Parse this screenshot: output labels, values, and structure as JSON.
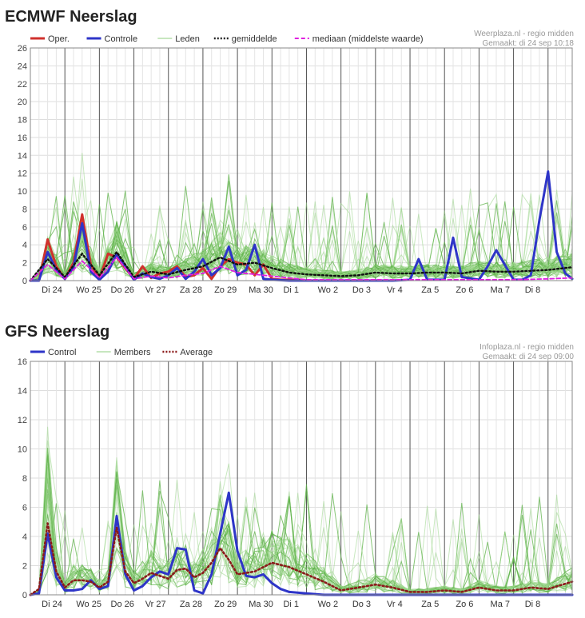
{
  "chart_data": [
    {
      "type": "line",
      "title": "ECMWF Neerslag",
      "credit_line1": "Weerplaza.nl - regio midden",
      "credit_line2": "Gemaakt: di 24 sep 10:18",
      "ylim": [
        0,
        26
      ],
      "yticks": [
        0,
        2,
        4,
        6,
        8,
        10,
        12,
        14,
        16,
        18,
        20,
        22,
        24,
        26
      ],
      "xlim": [
        0,
        15.7
      ],
      "day_labels": [
        "Di 24",
        "Wo 25",
        "Do 26",
        "Vr 27",
        "Za 28",
        "Zo 29",
        "Ma 30",
        "Di 1",
        "Wo 2",
        "Do 3",
        "Vr 4",
        "Za 5",
        "Zo 6",
        "Ma 7",
        "Di 8"
      ],
      "legend": [
        {
          "label": "Oper.",
          "style": "solid-thick",
          "color": "#d0312d"
        },
        {
          "label": "Controle",
          "style": "solid-thick",
          "color": "#2e35c8"
        },
        {
          "label": "Leden",
          "style": "solid-thin",
          "color": "#8fcf7f"
        },
        {
          "label": "gemiddelde",
          "style": "dotted",
          "color": "#222222"
        },
        {
          "label": "mediaan (middelste waarde)",
          "style": "dashed",
          "color": "#e020e0"
        }
      ],
      "series": [
        {
          "name": "Oper.",
          "color": "#d0312d",
          "width": 3,
          "x": [
            0,
            0.25,
            0.5,
            0.75,
            1,
            1.25,
            1.5,
            1.75,
            2,
            2.25,
            2.5,
            2.75,
            3,
            3.25,
            3.5,
            3.75,
            4,
            4.25,
            4.5,
            4.75,
            5,
            5.25,
            5.5,
            5.75,
            6,
            6.25,
            6.5,
            6.75,
            7,
            7.25,
            7.5,
            7.75,
            8,
            8.5,
            9,
            9.5,
            10
          ],
          "y": [
            0,
            0,
            4.6,
            1.6,
            0.2,
            2.0,
            7.4,
            1.8,
            0.2,
            3.0,
            2.6,
            1.4,
            0.2,
            1.6,
            0.3,
            0.8,
            1.0,
            1.6,
            0.4,
            0.6,
            1.4,
            0.2,
            1.6,
            2.4,
            2.0,
            1.8,
            0.6,
            1.8,
            0.2,
            0.1,
            0.1,
            0.1,
            0,
            0,
            0,
            0,
            0
          ]
        },
        {
          "name": "Controle",
          "color": "#2e35c8",
          "width": 3,
          "x": [
            0,
            0.25,
            0.5,
            0.75,
            1,
            1.25,
            1.5,
            1.75,
            2,
            2.25,
            2.5,
            2.75,
            3,
            3.25,
            3.5,
            3.75,
            4,
            4.25,
            4.5,
            4.75,
            5,
            5.25,
            5.5,
            5.75,
            6,
            6.25,
            6.5,
            6.75,
            7,
            7.5,
            8,
            8.5,
            9,
            9.5,
            10,
            10.5,
            11,
            11.25,
            11.5,
            12,
            12.25,
            12.5,
            13,
            13.25,
            13.5,
            14,
            14.25,
            14.5,
            14.75,
            15,
            15.25,
            15.5,
            15.7
          ],
          "y": [
            0,
            0,
            3.2,
            1.2,
            0.2,
            1.5,
            6.4,
            1.0,
            0.1,
            1.0,
            3.0,
            1.6,
            0.1,
            0.8,
            0.4,
            0.2,
            0.6,
            1.4,
            0.2,
            1.0,
            2.4,
            0.6,
            1.4,
            3.8,
            0.6,
            1.2,
            4.0,
            0.2,
            0.1,
            0,
            0,
            0,
            0,
            0,
            0,
            0,
            0.1,
            2.4,
            0.1,
            0.1,
            4.8,
            0.4,
            0.1,
            1.6,
            3.4,
            0.1,
            0.1,
            0.6,
            6.8,
            12.2,
            3.2,
            0.8,
            0.2
          ]
        },
        {
          "name": "gemiddelde",
          "color": "#111111",
          "dash": "2,3",
          "width": 2.4,
          "x": [
            0,
            0.5,
            1,
            1.5,
            2,
            2.5,
            3,
            3.5,
            4,
            4.5,
            5,
            5.5,
            6,
            6.5,
            7,
            7.5,
            8,
            8.5,
            9,
            9.5,
            10,
            10.5,
            11,
            11.5,
            12,
            12.5,
            13,
            13.5,
            14,
            14.5,
            15,
            15.7
          ],
          "y": [
            0,
            2.4,
            0.4,
            3.0,
            0.6,
            3.2,
            0.4,
            1.0,
            0.7,
            1.2,
            1.6,
            2.6,
            1.8,
            2.0,
            1.4,
            0.9,
            0.7,
            0.6,
            0.5,
            0.6,
            0.9,
            0.8,
            0.8,
            0.9,
            0.9,
            0.8,
            1.1,
            1.0,
            1.0,
            1.1,
            1.2,
            1.5
          ]
        },
        {
          "name": "mediaan (middelste waarde)",
          "color": "#e020e0",
          "dash": "5,3",
          "width": 1.8,
          "x": [
            0,
            0.5,
            1,
            1.5,
            2,
            2.5,
            3,
            3.5,
            4,
            4.5,
            5,
            5.5,
            6,
            7,
            8,
            9,
            10,
            11,
            12,
            13,
            14,
            15,
            15.7
          ],
          "y": [
            0,
            1.8,
            0.2,
            2.2,
            0.3,
            2.6,
            0.2,
            0.5,
            0.3,
            0.6,
            0.8,
            1.6,
            0.9,
            0.5,
            0.1,
            0.1,
            0.1,
            0.1,
            0.1,
            0.1,
            0.1,
            0.2,
            0.3
          ]
        }
      ],
      "members_note": "Leden"
    },
    {
      "type": "line",
      "title": "GFS Neerslag",
      "credit_line1": "Infoplaza.nl - regio midden",
      "credit_line2": "Gemaakt: di 24 sep 09:00",
      "ylim": [
        0,
        16
      ],
      "yticks": [
        0,
        2,
        4,
        6,
        8,
        10,
        12,
        14,
        16
      ],
      "xlim": [
        0,
        15.7
      ],
      "day_labels": [
        "Di 24",
        "Wo 25",
        "Do 26",
        "Vr 27",
        "Za 28",
        "Zo 29",
        "Ma 30",
        "Di 1",
        "Wo 2",
        "Do 3",
        "Vr 4",
        "Za 5",
        "Zo 6",
        "Ma 7",
        "Di 8"
      ],
      "legend": [
        {
          "label": "Control",
          "style": "solid-thick",
          "color": "#2e35c8"
        },
        {
          "label": "Members",
          "style": "solid-thin",
          "color": "#8fcf7f"
        },
        {
          "label": "Average",
          "style": "dotted",
          "color": "#8b1a1a"
        }
      ],
      "series": [
        {
          "name": "Control",
          "color": "#2e35c8",
          "width": 3,
          "x": [
            0,
            0.25,
            0.5,
            0.75,
            1,
            1.25,
            1.5,
            1.75,
            2,
            2.25,
            2.5,
            2.75,
            3,
            3.25,
            3.5,
            3.75,
            4,
            4.25,
            4.5,
            4.75,
            5,
            5.25,
            5.5,
            5.75,
            6,
            6.25,
            6.5,
            6.75,
            7,
            7.25,
            7.5,
            8,
            8.5,
            9,
            10,
            11,
            12,
            13,
            14,
            15,
            15.7
          ],
          "y": [
            0,
            0.1,
            4.2,
            1.2,
            0.3,
            0.3,
            0.4,
            1.0,
            0.4,
            0.6,
            5.4,
            1.4,
            0.3,
            0.6,
            1.2,
            1.6,
            1.4,
            3.2,
            3.1,
            0.3,
            0.1,
            1.4,
            4.2,
            7.0,
            3.0,
            1.3,
            1.2,
            1.4,
            0.8,
            0.4,
            0.2,
            0.1,
            0,
            0,
            0,
            0,
            0,
            0,
            0,
            0,
            0
          ]
        },
        {
          "name": "Average",
          "color": "#8b1a1a",
          "dash": "2,3",
          "width": 2.6,
          "x": [
            0,
            0.25,
            0.5,
            0.75,
            1,
            1.25,
            1.5,
            1.75,
            2,
            2.25,
            2.5,
            2.75,
            3,
            3.25,
            3.5,
            3.75,
            4,
            4.25,
            4.5,
            4.75,
            5,
            5.25,
            5.5,
            5.75,
            6,
            6.5,
            7,
            7.5,
            8,
            8.5,
            9,
            9.5,
            10,
            10.5,
            11,
            11.5,
            12,
            12.5,
            13,
            13.5,
            14,
            14.5,
            15,
            15.7
          ],
          "y": [
            0,
            0.4,
            4.9,
            1.6,
            0.5,
            1.0,
            1.0,
            0.9,
            0.5,
            0.9,
            4.6,
            1.6,
            0.8,
            1.1,
            1.5,
            1.3,
            1.1,
            1.7,
            1.8,
            1.2,
            1.5,
            2.2,
            3.2,
            2.4,
            1.4,
            1.6,
            2.2,
            1.9,
            1.4,
            0.9,
            0.3,
            0.5,
            0.7,
            0.5,
            0.2,
            0.2,
            0.3,
            0.2,
            0.5,
            0.3,
            0.3,
            0.5,
            0.4,
            0.9
          ]
        }
      ],
      "members_note": "Members"
    }
  ]
}
